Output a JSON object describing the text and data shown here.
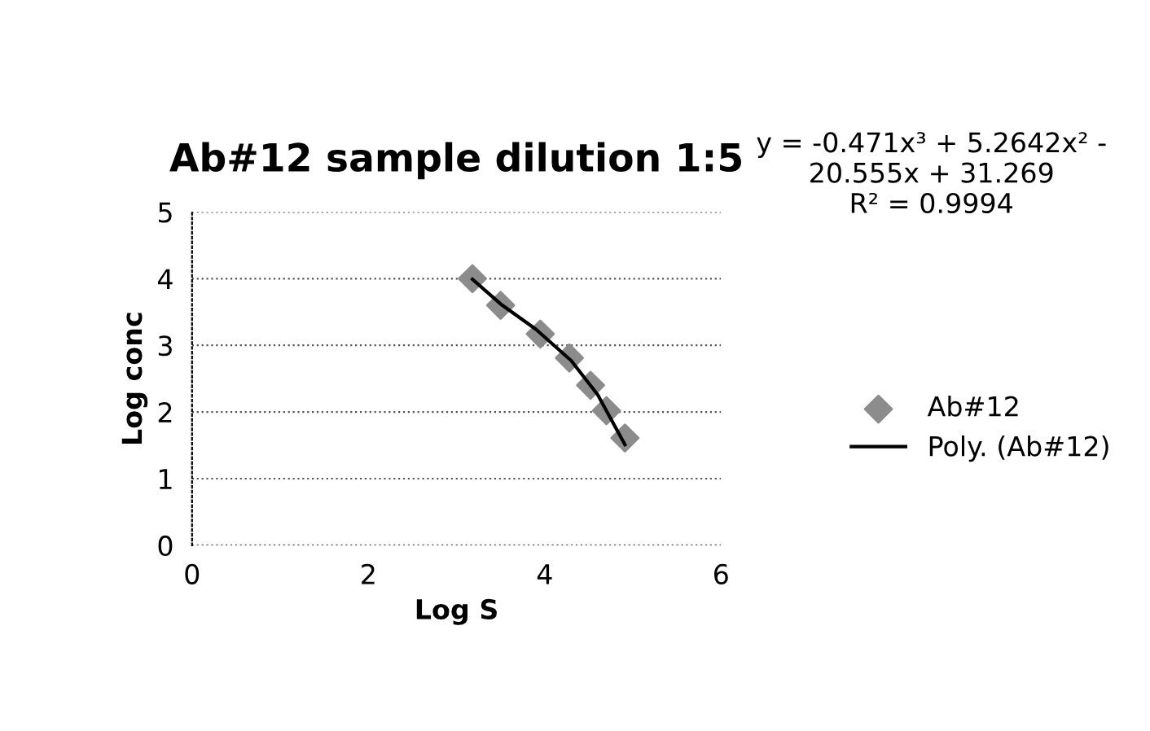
{
  "chart_data": {
    "type": "scatter",
    "title": "Ab#12 sample dilution 1:5",
    "xlabel": "Log S",
    "ylabel": "Log conc",
    "xlim": [
      0,
      6
    ],
    "xticks": [
      0,
      2,
      4,
      6
    ],
    "ylim": [
      0,
      5
    ],
    "yticks": [
      0,
      1,
      2,
      3,
      4,
      5
    ],
    "grid": "y",
    "legend": "right",
    "marker": "diamond",
    "annotations": [
      "y = -0.471x³ + 5.2642x² -\n20.555x + 31.269\nR² = 0.9994"
    ],
    "series": [
      {
        "name": "Ab#12",
        "color": "#8c8c8c",
        "x": [
          3.18,
          3.5,
          3.95,
          4.28,
          4.52,
          4.7,
          4.91
        ],
        "values": [
          4.0,
          3.6,
          3.17,
          2.81,
          2.4,
          2.02,
          1.61
        ]
      },
      {
        "name": "Poly. (Ab#12)",
        "type": "line",
        "marker": "none",
        "color": "#000000",
        "x": [
          3.18,
          3.5,
          3.9,
          4.3,
          4.6,
          4.91
        ],
        "values": [
          3.99,
          3.62,
          3.24,
          2.77,
          2.26,
          1.51
        ]
      }
    ]
  }
}
